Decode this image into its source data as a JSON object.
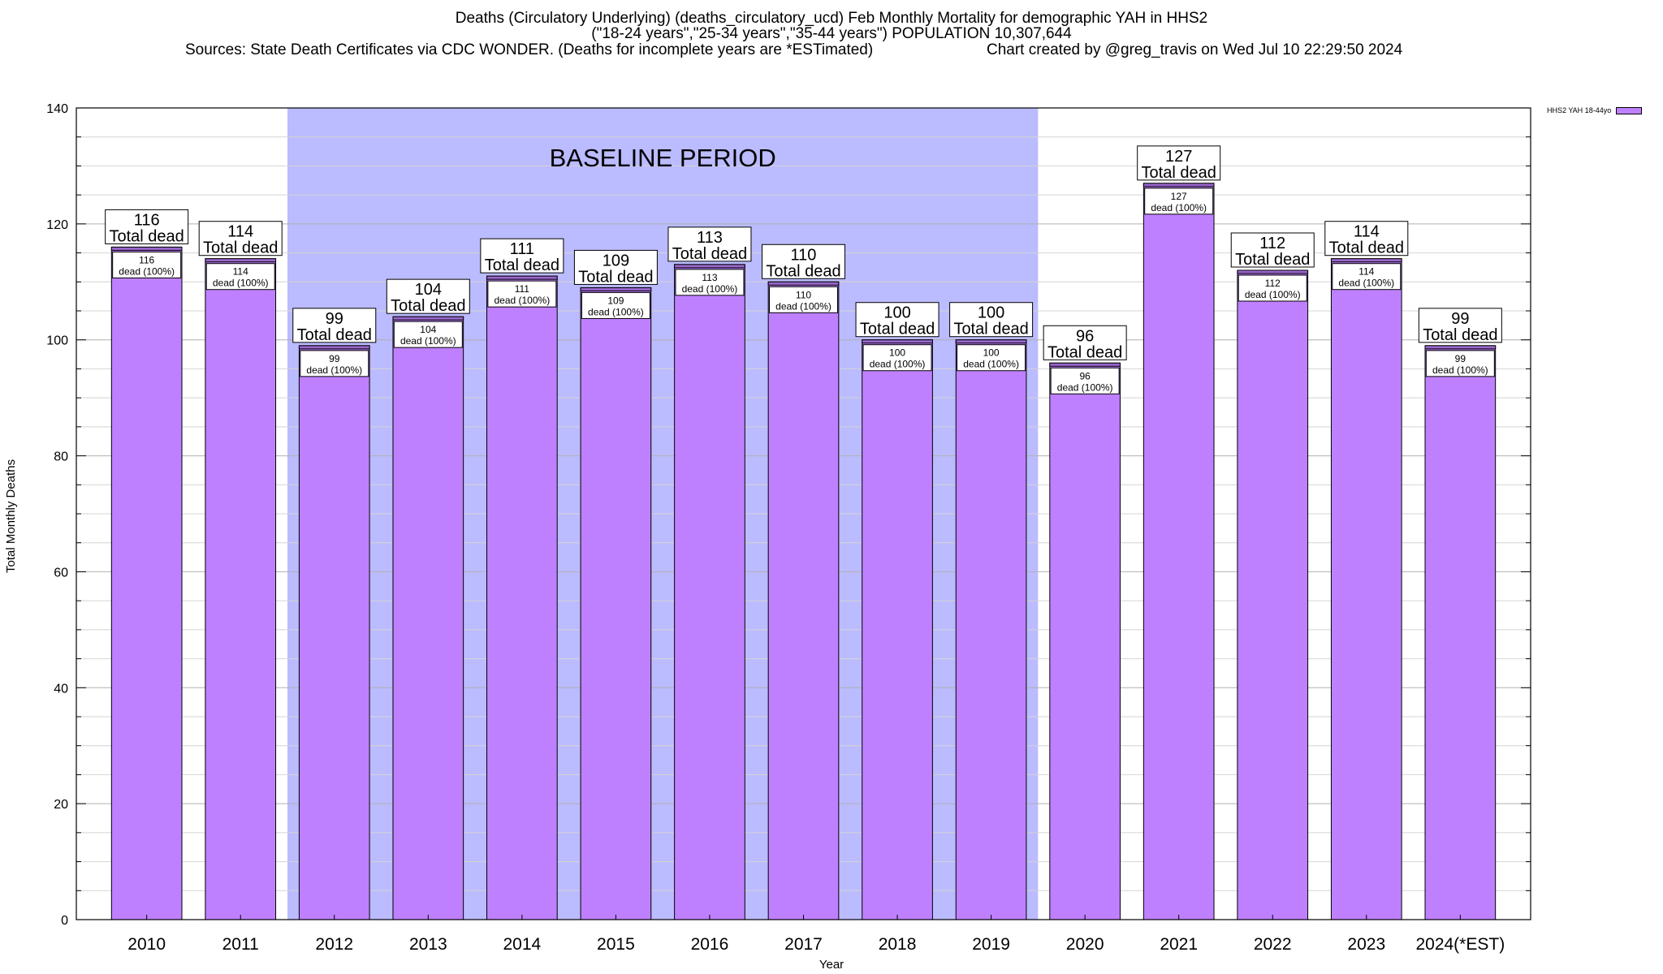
{
  "header": {
    "title_line1": "Deaths (Circulatory Underlying) (deaths_circulatory_ucd) Feb Monthly Mortality for demographic YAH in HHS2",
    "title_line2": "(\"18-24 years\",\"25-34 years\",\"35-44 years\") POPULATION 10,307,644",
    "title_line3": "Sources: State Death Certificates via CDC WONDER. (Deaths for incomplete years are *ESTimated)",
    "title_line3b": "Chart created by @greg_travis on Wed Jul 10 22:29:50 2024"
  },
  "chart_data": {
    "type": "bar",
    "categories": [
      "2010",
      "2011",
      "2012",
      "2013",
      "2014",
      "2015",
      "2016",
      "2017",
      "2018",
      "2019",
      "2020",
      "2021",
      "2022",
      "2023",
      "2024(*EST)"
    ],
    "series": [
      {
        "name": "HHS2 YAH 18-44yo",
        "values": [
          116,
          114,
          99,
          104,
          111,
          109,
          113,
          110,
          100,
          100,
          96,
          127,
          112,
          114,
          99
        ]
      }
    ],
    "total_labels": [
      "116\nTotal dead",
      "114\nTotal dead",
      "99\nTotal dead",
      "104\nTotal dead",
      "111\nTotal dead",
      "109\nTotal dead",
      "113\nTotal dead",
      "110\nTotal dead",
      "100\nTotal dead",
      "100\nTotal dead",
      "96\nTotal dead",
      "127\nTotal dead",
      "112\nTotal dead",
      "114\nTotal dead",
      "99\nTotal dead"
    ],
    "bar_labels": [
      "116\ndead (100%)",
      "114\ndead (100%)",
      "99\ndead (100%)",
      "104\ndead (100%)",
      "111\ndead (100%)",
      "109\ndead (100%)",
      "113\ndead (100%)",
      "110\ndead (100%)",
      "100\ndead (100%)",
      "100\ndead (100%)",
      "96\ndead (100%)",
      "127\ndead (100%)",
      "112\ndead (100%)",
      "114\ndead (100%)",
      "99\ndead (100%)"
    ],
    "xlabel": "Year",
    "ylabel": "Total Monthly Deaths",
    "ylim": [
      0,
      140
    ],
    "yticks": [
      0,
      20,
      40,
      60,
      80,
      100,
      120,
      140
    ],
    "grid": true,
    "legend_position": "top-right",
    "baseline_period": {
      "label": "BASELINE PERIOD",
      "from": "2012",
      "to": "2019"
    },
    "colors": {
      "bar": "#bf80ff",
      "bar_top": "#9966cc",
      "baseline": "#bbbbff",
      "grid": "#c0c0c0"
    }
  }
}
